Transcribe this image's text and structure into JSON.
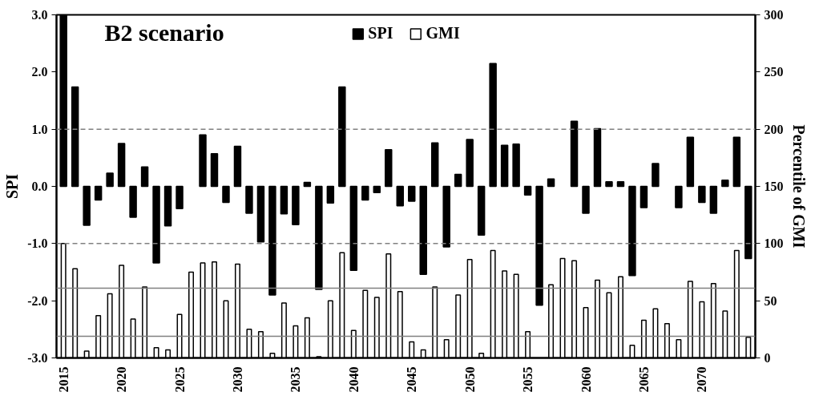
{
  "chart_data": {
    "type": "bar",
    "title": "B2 scenario",
    "ylabel": "SPI",
    "y2label": "Percentile of GMI",
    "x": [
      2015,
      2016,
      2017,
      2018,
      2019,
      2020,
      2021,
      2022,
      2023,
      2024,
      2025,
      2026,
      2027,
      2028,
      2029,
      2030,
      2031,
      2032,
      2033,
      2034,
      2035,
      2036,
      2037,
      2038,
      2039,
      2040,
      2041,
      2042,
      2043,
      2044,
      2045,
      2046,
      2047,
      2048,
      2049,
      2050,
      2051,
      2052,
      2053,
      2054,
      2055,
      2056,
      2057,
      2058,
      2059,
      2060,
      2061,
      2062,
      2063,
      2064,
      2065,
      2066,
      2067,
      2068,
      2069,
      2070,
      2071,
      2072,
      2073,
      2074
    ],
    "xlim": [
      2014.4,
      2074.6
    ],
    "xticks": [
      2015,
      2020,
      2025,
      2030,
      2035,
      2040,
      2045,
      2050,
      2055,
      2060,
      2065,
      2070
    ],
    "ylim": [
      -3,
      3
    ],
    "yticks": [
      {
        "value": -3,
        "label": "-3.0"
      },
      {
        "value": -2,
        "label": "-2.0"
      },
      {
        "value": -1,
        "label": "-1.0"
      },
      {
        "value": 0,
        "label": "0.0"
      },
      {
        "value": 1,
        "label": "1.0"
      },
      {
        "value": 2,
        "label": "2.0"
      },
      {
        "value": 3,
        "label": "3.0"
      }
    ],
    "y2lim": [
      0,
      300
    ],
    "y2ticks": [
      0,
      50,
      100,
      150,
      200,
      250,
      300
    ],
    "series": [
      {
        "name": "SPI",
        "color": "#000000",
        "values": [
          3.0,
          1.74,
          -0.68,
          -0.24,
          0.23,
          0.75,
          -0.54,
          0.34,
          -1.34,
          -0.69,
          -0.39,
          null,
          0.9,
          0.57,
          -0.28,
          0.7,
          -0.47,
          -0.97,
          -1.9,
          -0.48,
          -0.67,
          0.07,
          -1.8,
          -0.29,
          1.74,
          -1.47,
          -0.24,
          -0.11,
          0.64,
          -0.34,
          -0.26,
          -1.54,
          0.76,
          -1.06,
          0.21,
          0.82,
          -0.85,
          2.15,
          0.72,
          0.74,
          -0.15,
          -2.08,
          0.13,
          null,
          1.14,
          -0.47,
          1.01,
          0.08,
          0.08,
          -1.56,
          -0.37,
          0.4,
          null,
          -0.37,
          0.86,
          -0.28,
          -0.47,
          0.11,
          0.86,
          -1.26
        ]
      },
      {
        "name": "GMI",
        "color": "#ffffff",
        "axis": "y2",
        "values": [
          100,
          78,
          6,
          37,
          56,
          81,
          34,
          62,
          9,
          7,
          38,
          75,
          83,
          84,
          50,
          82,
          25,
          23,
          4,
          48,
          28,
          35,
          1,
          50,
          92,
          24,
          59,
          53,
          91,
          58,
          14,
          7,
          62,
          16,
          55,
          86,
          4,
          94,
          76,
          73,
          23,
          null,
          64,
          87,
          85,
          44,
          68,
          57,
          71,
          11,
          33,
          43,
          30,
          16,
          67,
          49,
          65,
          41,
          94,
          18
        ]
      }
    ],
    "ref_lines": [
      {
        "axis": "y",
        "value": 1,
        "color": "#808080",
        "line_style": "dashed"
      },
      {
        "axis": "y",
        "value": -1,
        "color": "#808080",
        "line_style": "dashed"
      },
      {
        "axis": "y2",
        "value": 61,
        "color": "#808080",
        "line_style": "solid"
      },
      {
        "axis": "y2",
        "value": 19,
        "color": "#808080",
        "line_style": "solid"
      }
    ],
    "grid": false,
    "legend": "top"
  }
}
